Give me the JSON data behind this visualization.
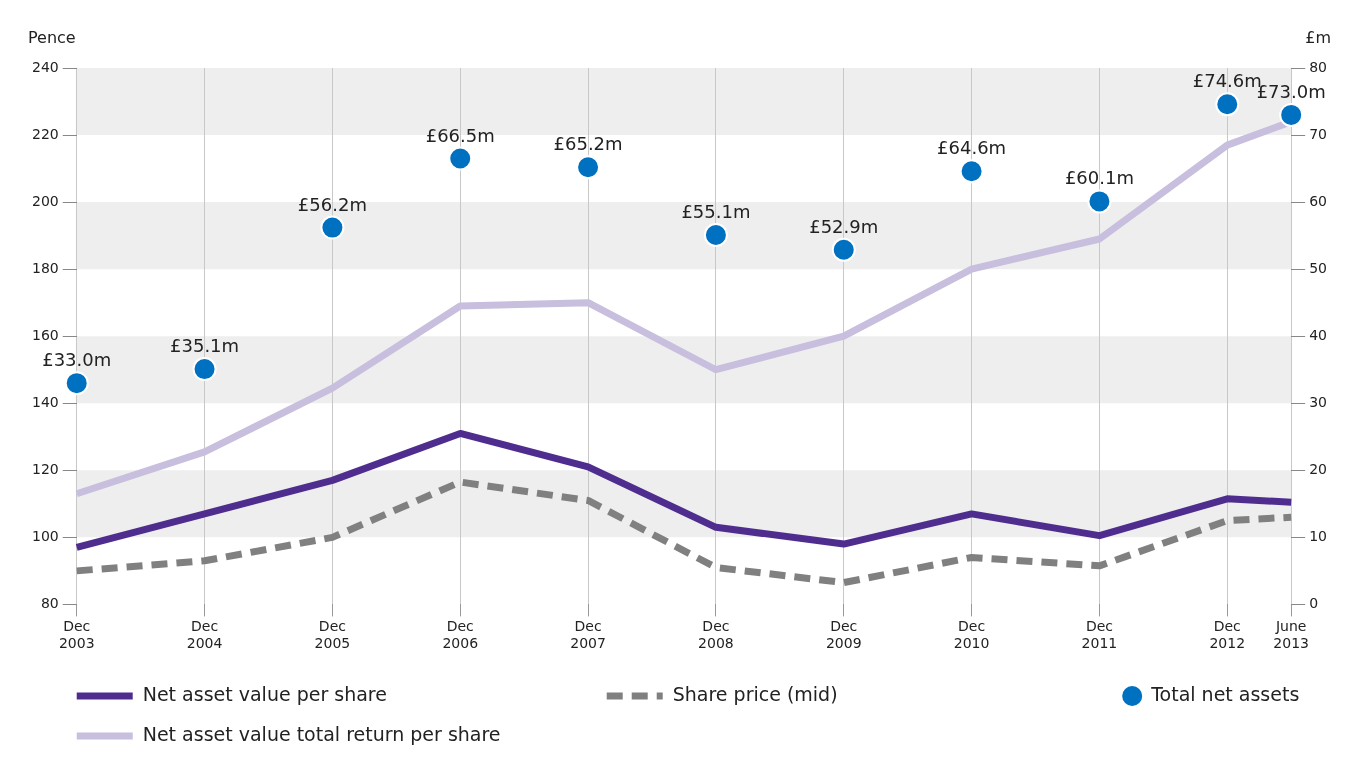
{
  "chart_data": {
    "type": "line",
    "x": [
      "2003-12",
      "2004-12",
      "2005-12",
      "2006-12",
      "2007-12",
      "2008-12",
      "2009-12",
      "2010-12",
      "2011-12",
      "2012-12",
      "2013-06"
    ],
    "xlim": [
      "2003-12",
      "2013-06"
    ],
    "xticks": [
      {
        "value": "2003-12",
        "label": "Dec 2003"
      },
      {
        "value": "2004-12",
        "label": "Dec 2004"
      },
      {
        "value": "2005-12",
        "label": "Dec 2005"
      },
      {
        "value": "2006-12",
        "label": "Dec 2006"
      },
      {
        "value": "2007-12",
        "label": "Dec 2007"
      },
      {
        "value": "2008-12",
        "label": "Dec 2008"
      },
      {
        "value": "2009-12",
        "label": "Dec 2009"
      },
      {
        "value": "2010-12",
        "label": "Dec 2010"
      },
      {
        "value": "2011-12",
        "label": "Dec 2011"
      },
      {
        "value": "2012-12",
        "label": "Dec 2012"
      },
      {
        "value": "2013-06",
        "label": "June 2013"
      }
    ],
    "ylabel": "Pence",
    "y2label": "£m",
    "ylim": [
      80,
      240
    ],
    "yticks": [
      80,
      100,
      120,
      140,
      160,
      180,
      200,
      220,
      240
    ],
    "y2lim": [
      0,
      80
    ],
    "y2ticks": [
      0,
      10,
      20,
      30,
      40,
      50,
      60,
      70,
      80
    ],
    "grid": "x",
    "legend": "bottom",
    "bands": [
      {
        "axis": "y",
        "from": 100,
        "to": 120,
        "color": "#eeeeee"
      },
      {
        "axis": "y",
        "from": 140,
        "to": 160,
        "color": "#eeeeee"
      },
      {
        "axis": "y",
        "from": 180,
        "to": 200,
        "color": "#eeeeee"
      },
      {
        "axis": "y",
        "from": 220,
        "to": 240,
        "color": "#eeeeee"
      }
    ],
    "series": [
      {
        "name": "Net asset value per share",
        "type": "line",
        "color": "#4f2d8f",
        "line_style": "solid",
        "marker": "none",
        "values": [
          97,
          107,
          117,
          131,
          121,
          103,
          98,
          107,
          100.5,
          111.5,
          110.5
        ]
      },
      {
        "name": "Share price (mid)",
        "type": "line",
        "color": "#808080",
        "line_style": "dashed",
        "marker": "none",
        "values": [
          90,
          93,
          100,
          116.5,
          111,
          91,
          86.5,
          94,
          91.5,
          105,
          106
        ]
      },
      {
        "name": "Total net assets",
        "type": "scatter",
        "axis": "y2",
        "color": "#0070c0",
        "marker": "circle",
        "values": [
          33.0,
          35.1,
          56.2,
          66.5,
          65.2,
          55.1,
          52.9,
          64.6,
          60.1,
          74.6,
          73.0
        ],
        "value_labels": [
          "£33.0m",
          "£35.1m",
          "£56.2m",
          "£66.5m",
          "£65.2m",
          "£55.1m",
          "£52.9m",
          "£64.6m",
          "£60.1m",
          "£74.6m",
          "£73.0m"
        ]
      },
      {
        "name": "Net asset value total return per share",
        "type": "line",
        "color": "#c8bedd",
        "line_style": "solid",
        "marker": "none",
        "values": [
          113,
          125.5,
          144.5,
          169,
          170,
          150,
          160,
          180,
          189,
          217,
          224
        ]
      }
    ]
  }
}
